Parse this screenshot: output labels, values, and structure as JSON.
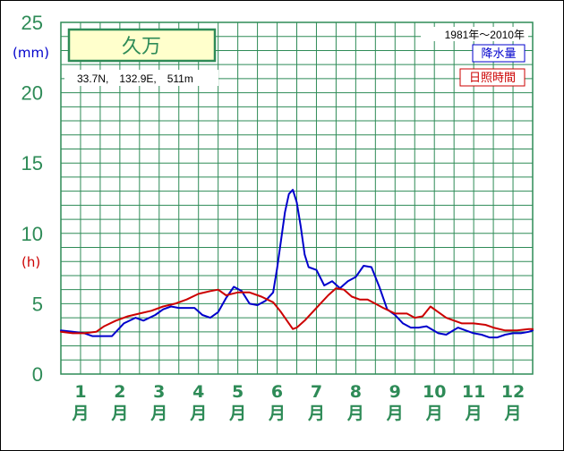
{
  "chart_data": {
    "type": "line",
    "title": "久万",
    "location": "33.7N,　132.9E,　511m",
    "period": "1981年〜2010年",
    "units": {
      "precip": "(mm)",
      "sunshine": "(h)"
    },
    "ylim": [
      0,
      25
    ],
    "yticks": [
      "0",
      "5",
      "10",
      "15",
      "20",
      "25"
    ],
    "categories": [
      "1",
      "2",
      "3",
      "4",
      "5",
      "6",
      "7",
      "8",
      "9",
      "10",
      "11",
      "12"
    ],
    "month_suffix": "月",
    "series": [
      {
        "name": "降水量",
        "color": "#0000cc",
        "x": [
          0.0,
          0.3,
          0.6,
          0.8,
          1.0,
          1.3,
          1.6,
          1.9,
          2.1,
          2.4,
          2.6,
          2.8,
          3.0,
          3.2,
          3.4,
          3.6,
          3.8,
          4.0,
          4.2,
          4.4,
          4.6,
          4.8,
          5.0,
          5.2,
          5.4,
          5.5,
          5.6,
          5.7,
          5.8,
          5.9,
          6.0,
          6.1,
          6.2,
          6.3,
          6.5,
          6.7,
          6.9,
          7.1,
          7.3,
          7.5,
          7.7,
          7.9,
          8.1,
          8.3,
          8.5,
          8.7,
          8.9,
          9.1,
          9.3,
          9.6,
          9.8,
          10.1,
          10.3,
          10.5,
          10.7,
          10.9,
          11.1,
          11.3,
          11.5,
          11.7,
          11.9,
          12.0
        ],
        "values": [
          3.1,
          3.0,
          2.9,
          2.7,
          2.7,
          2.7,
          3.6,
          4.0,
          3.8,
          4.2,
          4.6,
          4.8,
          4.7,
          4.7,
          4.7,
          4.2,
          4.0,
          4.4,
          5.4,
          6.2,
          5.9,
          5.0,
          4.9,
          5.2,
          5.8,
          7.5,
          9.5,
          11.5,
          12.8,
          13.1,
          12.2,
          10.5,
          8.5,
          7.6,
          7.4,
          6.3,
          6.6,
          6.1,
          6.6,
          6.9,
          7.7,
          7.6,
          6.2,
          4.6,
          4.2,
          3.6,
          3.3,
          3.3,
          3.4,
          2.9,
          2.8,
          3.3,
          3.1,
          2.9,
          2.8,
          2.6,
          2.6,
          2.8,
          2.9,
          2.9,
          3.0,
          3.1
        ]
      },
      {
        "name": "日照時間",
        "color": "#cc0000",
        "x": [
          0.0,
          0.3,
          0.6,
          0.9,
          1.1,
          1.4,
          1.7,
          2.0,
          2.3,
          2.6,
          2.9,
          3.2,
          3.5,
          3.8,
          4.0,
          4.2,
          4.5,
          4.8,
          5.1,
          5.4,
          5.6,
          5.8,
          5.9,
          6.0,
          6.2,
          6.4,
          6.6,
          6.8,
          7.0,
          7.2,
          7.4,
          7.6,
          7.8,
          8.0,
          8.2,
          8.5,
          8.8,
          9.0,
          9.2,
          9.4,
          9.6,
          9.8,
          10.0,
          10.2,
          10.5,
          10.8,
          11.0,
          11.3,
          11.6,
          11.9,
          12.0
        ],
        "values": [
          3.0,
          2.9,
          2.9,
          3.0,
          3.4,
          3.8,
          4.1,
          4.3,
          4.5,
          4.8,
          5.0,
          5.3,
          5.7,
          5.9,
          6.0,
          5.6,
          5.8,
          5.8,
          5.5,
          5.1,
          4.4,
          3.6,
          3.2,
          3.3,
          3.8,
          4.4,
          5.0,
          5.6,
          6.1,
          6.0,
          5.5,
          5.3,
          5.3,
          5.0,
          4.7,
          4.3,
          4.3,
          4.0,
          4.1,
          4.8,
          4.4,
          4.0,
          3.8,
          3.6,
          3.6,
          3.5,
          3.3,
          3.1,
          3.1,
          3.2,
          3.2
        ]
      }
    ],
    "legend": "top-right",
    "grid": true
  }
}
